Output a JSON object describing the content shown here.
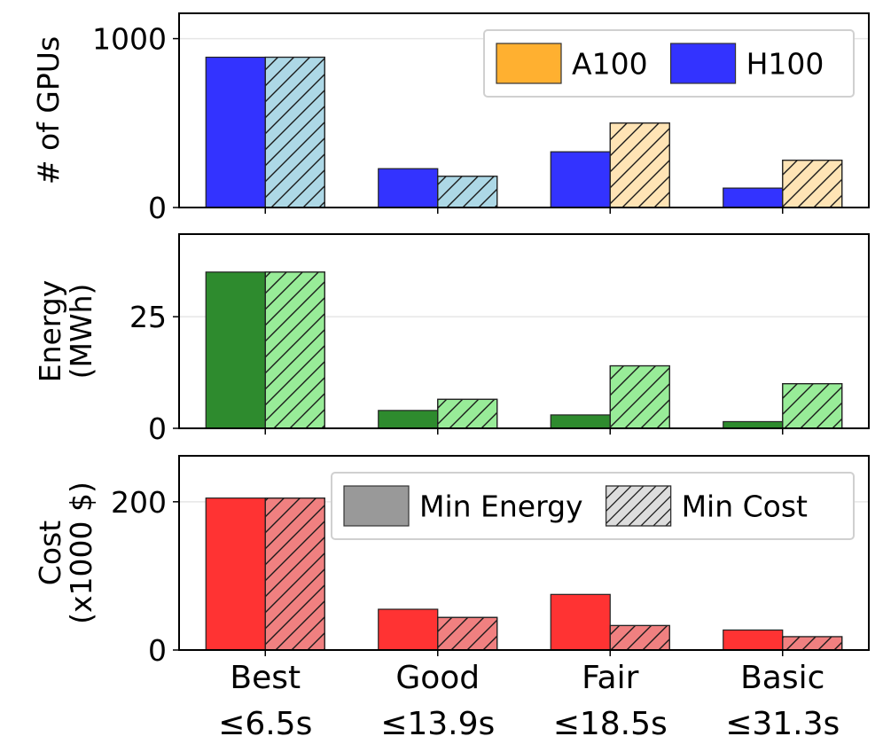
{
  "chart_data": [
    {
      "type": "bar",
      "id": "gpus",
      "ylabel_lines": [
        "# of GPUs"
      ],
      "ylim": [
        0,
        1150
      ],
      "yticks": [
        0,
        1000
      ],
      "gridlines": [
        1000
      ],
      "series": [
        {
          "name": "Min Energy",
          "style": "solid",
          "values": [
            890,
            230,
            330,
            115
          ],
          "colors": [
            "#3333ff",
            "#3333ff",
            "#3333ff",
            "#3333ff"
          ]
        },
        {
          "name": "Min Cost",
          "style": "hatched",
          "values": [
            890,
            185,
            500,
            280
          ],
          "colors": [
            "#add8e6",
            "#add8e6",
            "#ffe4b5",
            "#ffe4b5"
          ]
        }
      ],
      "legend": {
        "position": "top-right",
        "entries": [
          {
            "label": "A100",
            "color": "#ffb030"
          },
          {
            "label": "H100",
            "color": "#3333ff"
          }
        ]
      }
    },
    {
      "type": "bar",
      "id": "energy",
      "ylabel_lines": [
        "Energy",
        "(MWh)"
      ],
      "ylim": [
        0,
        43.5
      ],
      "yticks": [
        0,
        25
      ],
      "gridlines": [
        25
      ],
      "series": [
        {
          "name": "Min Energy",
          "style": "solid",
          "values": [
            35,
            4,
            3,
            1.5
          ],
          "colors": [
            "#2e8b2e",
            "#2e8b2e",
            "#2e8b2e",
            "#2e8b2e"
          ]
        },
        {
          "name": "Min Cost",
          "style": "hatched",
          "values": [
            35,
            6.5,
            14,
            10
          ],
          "colors": [
            "#98ec98",
            "#98ec98",
            "#98ec98",
            "#98ec98"
          ]
        }
      ],
      "legend": null
    },
    {
      "type": "bar",
      "id": "cost",
      "ylabel_lines": [
        "Cost",
        "(x1000 $)"
      ],
      "ylim": [
        0,
        262
      ],
      "yticks": [
        0,
        200
      ],
      "gridlines": [
        200
      ],
      "series": [
        {
          "name": "Min Energy",
          "style": "solid",
          "values": [
            205,
            55,
            75,
            27
          ],
          "colors": [
            "#ff3333",
            "#ff3333",
            "#ff3333",
            "#ff3333"
          ]
        },
        {
          "name": "Min Cost",
          "style": "hatched",
          "values": [
            205,
            44,
            33,
            18
          ],
          "colors": [
            "#f08080",
            "#f08080",
            "#f08080",
            "#f08080"
          ]
        }
      ],
      "legend": {
        "position": "top-right",
        "entries": [
          {
            "label": "Min Energy",
            "color": "#999999",
            "style": "solid"
          },
          {
            "label": "Min Cost",
            "color": "#dddddd",
            "style": "hatched"
          }
        ]
      }
    }
  ],
  "categories": [
    {
      "name": "Best",
      "limit": "≤6.5s"
    },
    {
      "name": "Good",
      "limit": "≤13.9s"
    },
    {
      "name": "Fair",
      "limit": "≤18.5s"
    },
    {
      "name": "Basic",
      "limit": "≤31.3s"
    }
  ]
}
